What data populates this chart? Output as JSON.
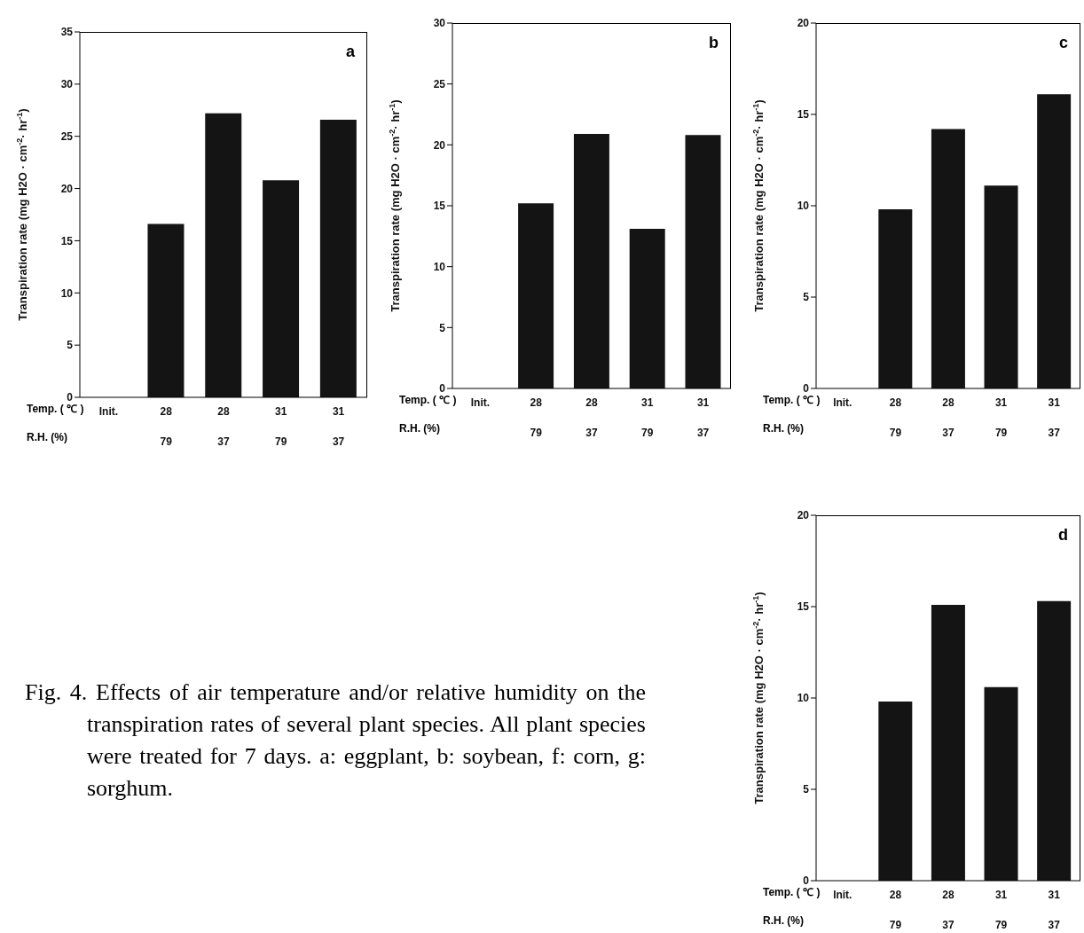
{
  "chart_data": [
    {
      "type": "bar",
      "title": "a",
      "ylabel": "Transpiration rate (mg H2O · cm$^{-2}$· hr$^{-1}$)",
      "categories": [
        "Init.",
        "28\n79",
        "28\n37",
        "31\n79",
        "31\n37"
      ],
      "values": [
        null,
        16.6,
        27.2,
        20.8,
        26.6
      ],
      "color": "#141414",
      "ylim": [
        0,
        35
      ],
      "yticks": [
        0,
        5,
        10,
        15,
        20,
        25,
        30,
        35
      ],
      "annotations": [
        "Temp. ( ℃ )",
        "R.H. (%)"
      ]
    },
    {
      "type": "bar",
      "title": "b",
      "ylabel": "Transpiration rate (mg H2O · cm$^{-2}$· hr$^{-1}$)",
      "categories": [
        "Init.",
        "28\n79",
        "28\n37",
        "31\n79",
        "31\n37"
      ],
      "values": [
        null,
        15.2,
        20.9,
        13.1,
        20.8
      ],
      "color": "#141414",
      "ylim": [
        0,
        30
      ],
      "yticks": [
        0,
        5,
        10,
        15,
        20,
        25,
        30
      ],
      "annotations": [
        "Temp. ( ℃ )",
        "R.H. (%)"
      ]
    },
    {
      "type": "bar",
      "title": "c",
      "ylabel": "Transpiration rate (mg H2O · cm$^{-2}$· hr$^{-1}$)",
      "categories": [
        "Init.",
        "28\n79",
        "28\n37",
        "31\n79",
        "31\n37"
      ],
      "values": [
        null,
        9.8,
        14.2,
        11.1,
        16.1
      ],
      "color": "#141414",
      "ylim": [
        0,
        20
      ],
      "yticks": [
        0,
        5,
        10,
        15,
        20
      ],
      "annotations": [
        "Temp. ( ℃ )",
        "R.H. (%)"
      ]
    },
    {
      "type": "bar",
      "title": "d",
      "ylabel": "Transpiration rate (mg H2O · cm$^{-2}$· hr$^{-1}$)",
      "categories": [
        "Init.",
        "28\n79",
        "28\n37",
        "31\n79",
        "31\n37"
      ],
      "values": [
        null,
        9.8,
        15.1,
        10.6,
        15.3
      ],
      "color": "#141414",
      "ylim": [
        0,
        20
      ],
      "yticks": [
        0,
        5,
        10,
        15,
        20
      ],
      "annotations": [
        "Temp. ( ℃ )",
        "R.H. (%)"
      ]
    },
    {
      "type": "other",
      "annotations": [
        "Fig. 4. Effects of air temperature and/or relative humidity on the transpiration rates of several plant species. All plant species were treated for 7 days. a: eggplant, b: soybean, f: corn, g: sorghum."
      ]
    }
  ]
}
